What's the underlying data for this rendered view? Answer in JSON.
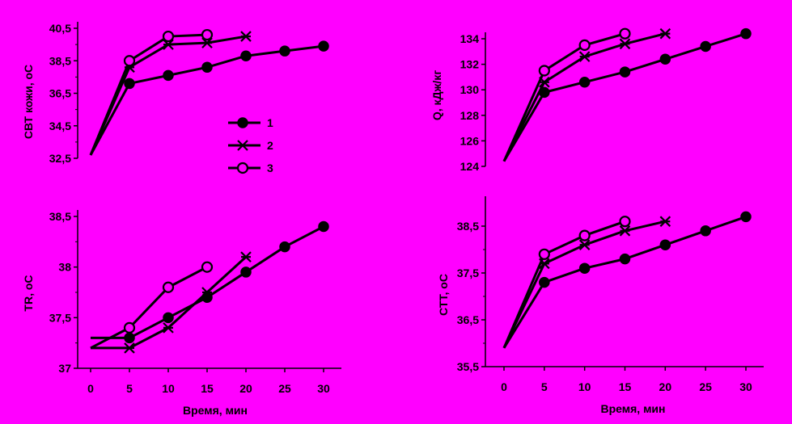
{
  "legend": [
    {
      "label": "1",
      "marker": "filled-circle"
    },
    {
      "label": "2",
      "marker": "asterisk"
    },
    {
      "label": "3",
      "marker": "open-circle"
    }
  ],
  "colors": {
    "background": "#ff00ff",
    "ink": "#000000"
  },
  "chart_data": [
    {
      "type": "line",
      "ylabel": "СВТ кожи, оС",
      "xlabel": "",
      "ylim": [
        32.5,
        40.5
      ],
      "yticks": [
        "32,5",
        "34,5",
        "36,5",
        "38,5",
        "40,5"
      ],
      "ytick_values": [
        32.5,
        34.5,
        36.5,
        38.5,
        40.5
      ],
      "xlim": [
        0,
        30
      ],
      "series": [
        {
          "name": "1",
          "x": [
            0,
            5,
            10,
            15,
            20,
            25,
            30
          ],
          "values": [
            32.7,
            37.1,
            37.6,
            38.1,
            38.8,
            39.1,
            39.4
          ]
        },
        {
          "name": "2",
          "x": [
            0,
            5,
            10,
            15,
            20
          ],
          "values": [
            32.7,
            38.1,
            39.5,
            39.6,
            40.0
          ]
        },
        {
          "name": "3",
          "x": [
            0,
            5,
            10,
            15
          ],
          "values": [
            32.7,
            38.5,
            40.0,
            40.1
          ]
        }
      ]
    },
    {
      "type": "line",
      "ylabel": "Q, кДж/кг",
      "xlabel": "",
      "ylim": [
        124,
        134
      ],
      "yticks": [
        "124",
        "126",
        "128",
        "130",
        "132",
        "134"
      ],
      "ytick_values": [
        124,
        126,
        128,
        130,
        132,
        134
      ],
      "xlim": [
        0,
        30
      ],
      "series": [
        {
          "name": "1",
          "x": [
            0,
            5,
            10,
            15,
            20,
            25,
            30
          ],
          "values": [
            124.4,
            129.8,
            130.6,
            131.4,
            132.4,
            133.4,
            134.4
          ]
        },
        {
          "name": "2",
          "x": [
            0,
            5,
            10,
            15,
            20
          ],
          "values": [
            124.4,
            130.6,
            132.6,
            133.6,
            134.4
          ]
        },
        {
          "name": "3",
          "x": [
            0,
            5,
            10,
            15
          ],
          "values": [
            124.4,
            131.5,
            133.5,
            134.4
          ]
        }
      ]
    },
    {
      "type": "line",
      "ylabel": "TR, oC",
      "xlabel": "Время, мин",
      "ylim": [
        37,
        38.5
      ],
      "yticks": [
        "37",
        "37,5",
        "38",
        "38,5"
      ],
      "ytick_values": [
        37,
        37.5,
        38,
        38.5
      ],
      "xticks": [
        "0",
        "5",
        "10",
        "15",
        "20",
        "25",
        "30"
      ],
      "xlim": [
        0,
        30
      ],
      "series": [
        {
          "name": "1",
          "x": [
            0,
            5,
            10,
            15,
            20,
            25,
            30
          ],
          "values": [
            37.3,
            37.3,
            37.5,
            37.7,
            37.95,
            38.2,
            38.4
          ]
        },
        {
          "name": "2",
          "x": [
            0,
            5,
            10,
            15,
            20
          ],
          "values": [
            37.2,
            37.2,
            37.4,
            37.75,
            38.1
          ]
        },
        {
          "name": "3",
          "x": [
            0,
            5,
            10,
            15
          ],
          "values": [
            37.2,
            37.4,
            37.8,
            38.0
          ]
        }
      ]
    },
    {
      "type": "line",
      "ylabel": "СТТ, оС",
      "xlabel": "Время, мин",
      "ylim": [
        35.5,
        39
      ],
      "yticks": [
        "35,5",
        "36,5",
        "37,5",
        "38,5"
      ],
      "ytick_values": [
        35.5,
        36.5,
        37.5,
        38.5
      ],
      "xticks": [
        "0",
        "5",
        "10",
        "15",
        "20",
        "25",
        "30"
      ],
      "xlim": [
        0,
        30
      ],
      "series": [
        {
          "name": "1",
          "x": [
            0,
            5,
            10,
            15,
            20,
            25,
            30
          ],
          "values": [
            35.9,
            37.3,
            37.6,
            37.8,
            38.1,
            38.4,
            38.7
          ]
        },
        {
          "name": "2",
          "x": [
            0,
            5,
            10,
            15,
            20
          ],
          "values": [
            35.9,
            37.7,
            38.1,
            38.4,
            38.6
          ]
        },
        {
          "name": "3",
          "x": [
            0,
            5,
            10,
            15
          ],
          "values": [
            35.9,
            37.9,
            38.3,
            38.6
          ]
        }
      ]
    }
  ]
}
